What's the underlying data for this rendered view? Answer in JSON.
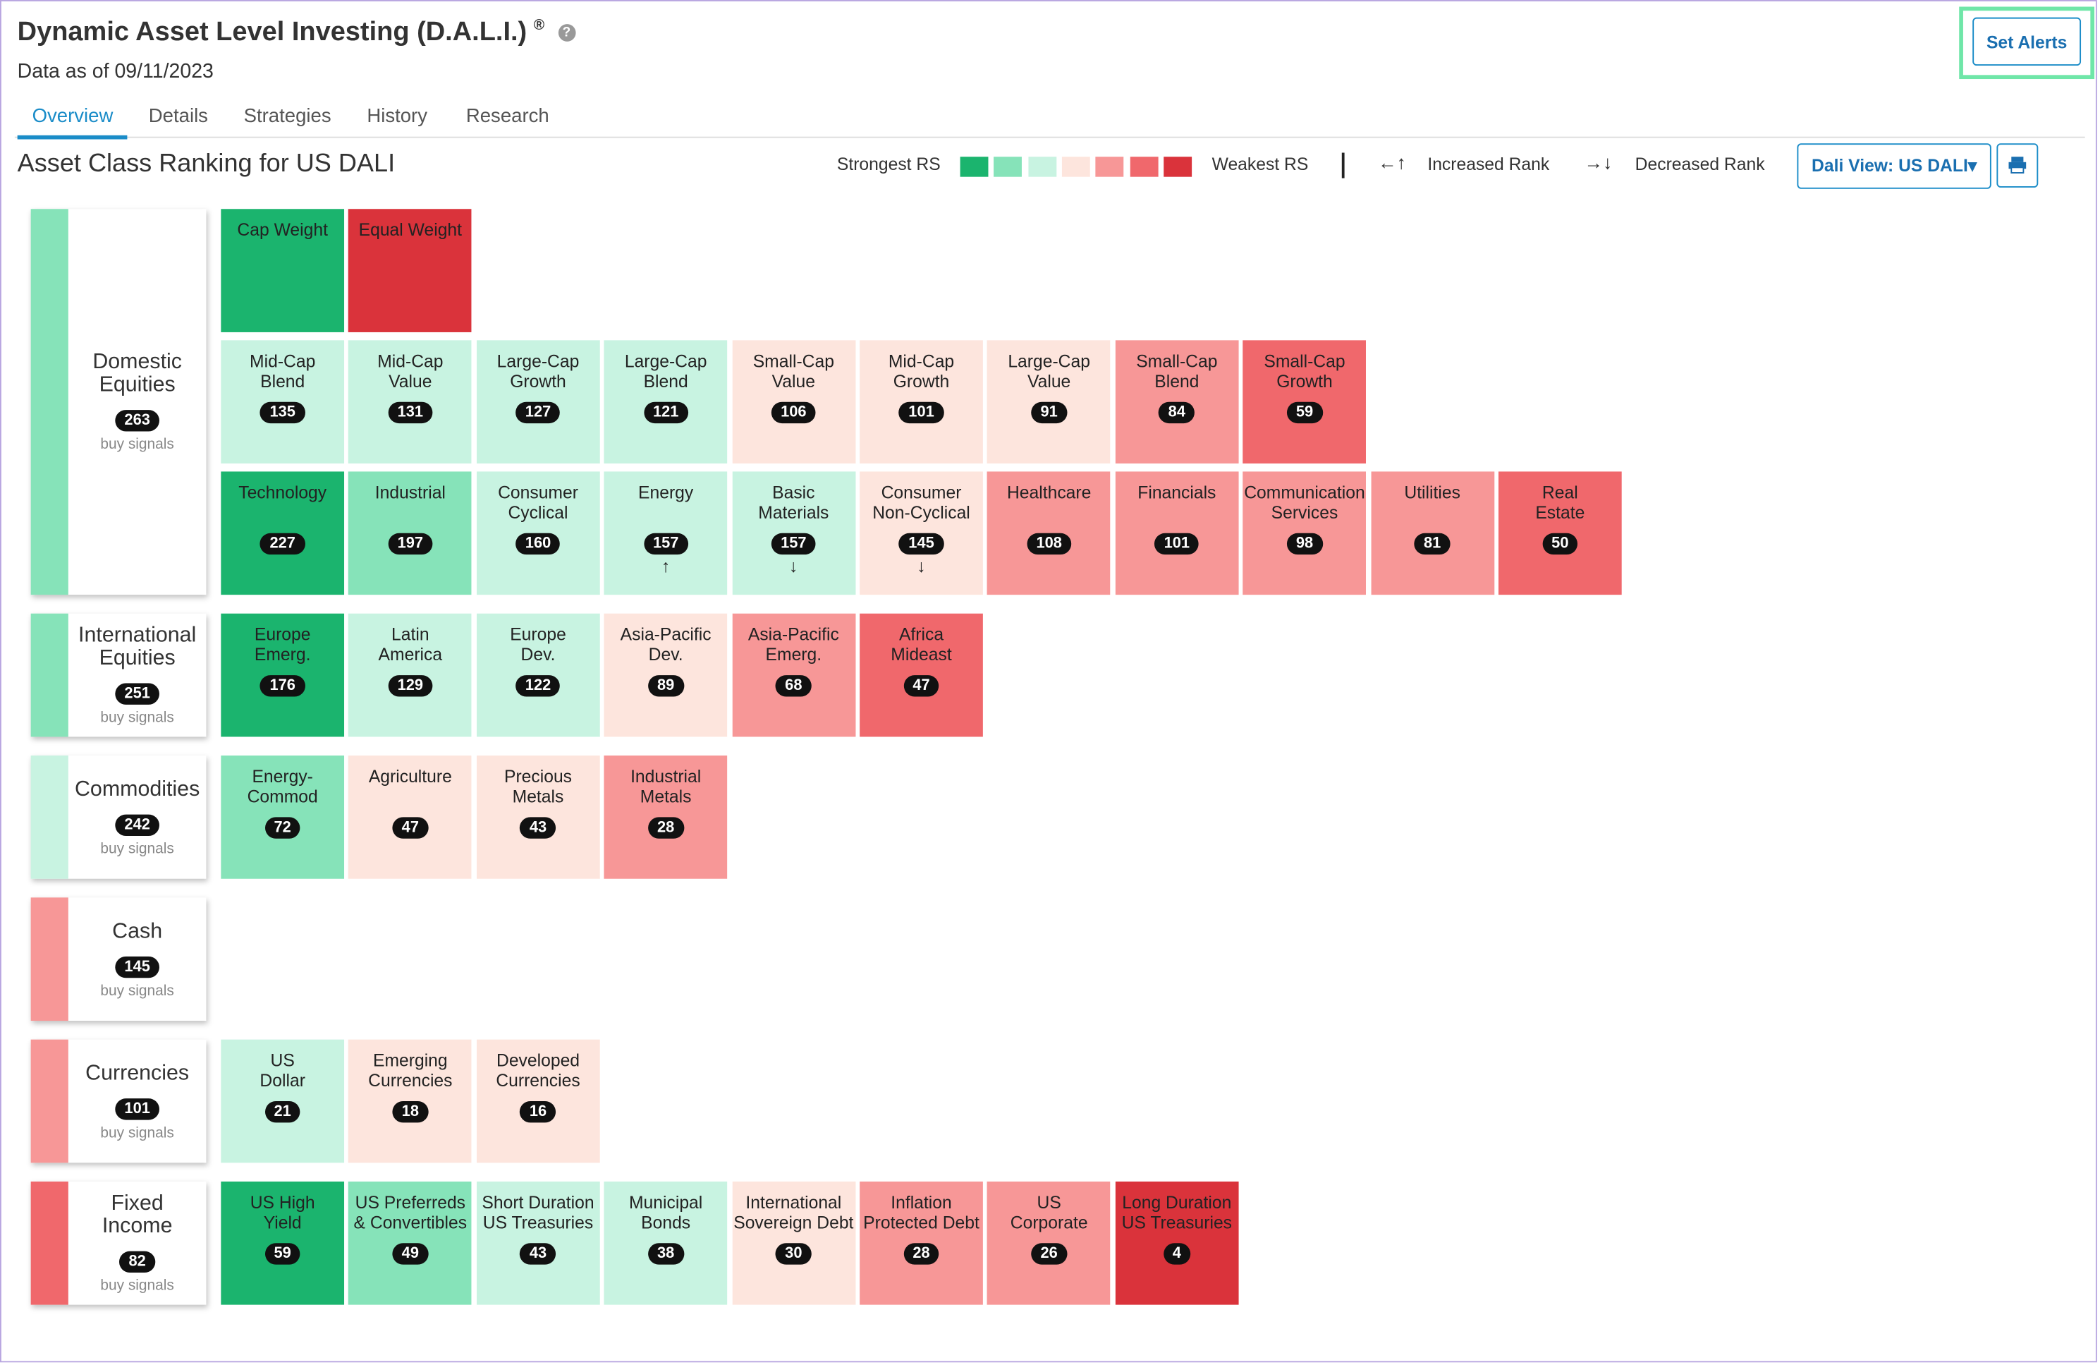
{
  "header": {
    "title": "Dynamic Asset Level Investing (D.A.L.I.)",
    "mark": "®",
    "date": "Data as of 09/11/2023"
  },
  "tabs": [
    "Overview",
    "Details",
    "Strategies",
    "History",
    "Research"
  ],
  "active_tab": 0,
  "section_title": "Asset Class Ranking for US DALI",
  "buttons": {
    "set_alerts": "Set Alerts",
    "dali_view": "Dali View: US DALI▾"
  },
  "legend": {
    "strongest": "Strongest RS",
    "weakest": "Weakest RS",
    "colors": [
      "#1bb46e",
      "#86e3b9",
      "#c8f3e1",
      "#fde5dd",
      "#f79797",
      "#f0686c",
      "#da333b"
    ],
    "increased": "Increased Rank",
    "decreased": "Decreased Rank"
  },
  "groups": [
    {
      "name": "Domestic\nEquities",
      "count": 263,
      "signals": "buy signals",
      "color": "#86e3b9",
      "rows": [
        [
          {
            "label": "Cap Weight",
            "color": "#1bb46e"
          },
          {
            "label": "Equal Weight",
            "color": "#da333b"
          }
        ],
        [
          {
            "label": "Mid-Cap\nBlend",
            "value": 135,
            "color": "#c8f3e1"
          },
          {
            "label": "Mid-Cap\nValue",
            "value": 131,
            "color": "#c8f3e1"
          },
          {
            "label": "Large-Cap\nGrowth",
            "value": 127,
            "color": "#c8f3e1"
          },
          {
            "label": "Large-Cap\nBlend",
            "value": 121,
            "color": "#c8f3e1"
          },
          {
            "label": "Small-Cap\nValue",
            "value": 106,
            "color": "#fde5dd"
          },
          {
            "label": "Mid-Cap\nGrowth",
            "value": 101,
            "color": "#fde5dd"
          },
          {
            "label": "Large-Cap\nValue",
            "value": 91,
            "color": "#fde5dd"
          },
          {
            "label": "Small-Cap\nBlend",
            "value": 84,
            "color": "#f79797"
          },
          {
            "label": "Small-Cap\nGrowth",
            "value": 59,
            "color": "#f0686c"
          }
        ],
        [
          {
            "label": "Technology",
            "value": 227,
            "color": "#1bb46e"
          },
          {
            "label": "Industrial",
            "value": 197,
            "color": "#86e3b9"
          },
          {
            "label": "Consumer\nCyclical",
            "value": 160,
            "color": "#c8f3e1"
          },
          {
            "label": "Energy",
            "value": 157,
            "color": "#c8f3e1",
            "arrow": "up"
          },
          {
            "label": "Basic\nMaterials",
            "value": 157,
            "color": "#c8f3e1",
            "arrow": "down"
          },
          {
            "label": "Consumer\nNon-Cyclical",
            "value": 145,
            "color": "#fde5dd",
            "arrow": "down"
          },
          {
            "label": "Healthcare",
            "value": 108,
            "color": "#f79797"
          },
          {
            "label": "Financials",
            "value": 101,
            "color": "#f79797"
          },
          {
            "label": "Communication\nServices",
            "value": 98,
            "color": "#f79797"
          },
          {
            "label": "Utilities",
            "value": 81,
            "color": "#f79797"
          },
          {
            "label": "Real\nEstate",
            "value": 50,
            "color": "#f0686c"
          }
        ]
      ]
    },
    {
      "name": "International\nEquities",
      "count": 251,
      "signals": "buy signals",
      "color": "#86e3b9",
      "rows": [
        [
          {
            "label": "Europe\nEmerg.",
            "value": 176,
            "color": "#1bb46e"
          },
          {
            "label": "Latin\nAmerica",
            "value": 129,
            "color": "#c8f3e1"
          },
          {
            "label": "Europe\nDev.",
            "value": 122,
            "color": "#c8f3e1"
          },
          {
            "label": "Asia-Pacific\nDev.",
            "value": 89,
            "color": "#fde5dd"
          },
          {
            "label": "Asia-Pacific\nEmerg.",
            "value": 68,
            "color": "#f79797"
          },
          {
            "label": "Africa\nMideast",
            "value": 47,
            "color": "#f0686c"
          }
        ]
      ]
    },
    {
      "name": "Commodities",
      "count": 242,
      "signals": "buy signals",
      "color": "#c8f3e1",
      "rows": [
        [
          {
            "label": "Energy-\nCommod",
            "value": 72,
            "color": "#86e3b9"
          },
          {
            "label": "Agriculture",
            "value": 47,
            "color": "#fde5dd"
          },
          {
            "label": "Precious\nMetals",
            "value": 43,
            "color": "#fde5dd"
          },
          {
            "label": "Industrial\nMetals",
            "value": 28,
            "color": "#f79797"
          }
        ]
      ]
    },
    {
      "name": "Cash",
      "count": 145,
      "signals": "buy signals",
      "color": "#f79797",
      "rows": []
    },
    {
      "name": "Currencies",
      "count": 101,
      "signals": "buy signals",
      "color": "#f79797",
      "rows": [
        [
          {
            "label": "US\nDollar",
            "value": 21,
            "color": "#c8f3e1"
          },
          {
            "label": "Emerging\nCurrencies",
            "value": 18,
            "color": "#fde5dd"
          },
          {
            "label": "Developed\nCurrencies",
            "value": 16,
            "color": "#fde5dd"
          }
        ]
      ]
    },
    {
      "name": "Fixed\nIncome",
      "count": 82,
      "signals": "buy signals",
      "color": "#f0686c",
      "rows": [
        [
          {
            "label": "US High\nYield",
            "value": 59,
            "color": "#1bb46e"
          },
          {
            "label": "US Preferreds\n& Convertibles",
            "value": 49,
            "color": "#86e3b9"
          },
          {
            "label": "Short Duration\nUS Treasuries",
            "value": 43,
            "color": "#c8f3e1"
          },
          {
            "label": "Municipal\nBonds",
            "value": 38,
            "color": "#c8f3e1"
          },
          {
            "label": "International\nSovereign Debt",
            "value": 30,
            "color": "#fde5dd"
          },
          {
            "label": "Inflation\nProtected Debt",
            "value": 28,
            "color": "#f79797"
          },
          {
            "label": "US\nCorporate",
            "value": 26,
            "color": "#f79797"
          },
          {
            "label": "Long Duration\nUS Treasuries",
            "value": 4,
            "color": "#da333b"
          }
        ]
      ]
    }
  ]
}
